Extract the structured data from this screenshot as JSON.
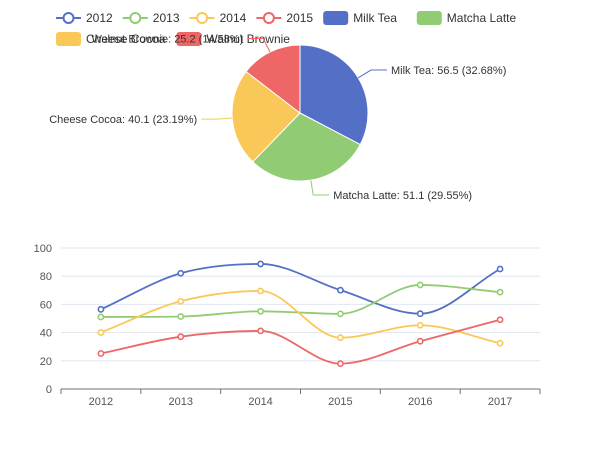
{
  "chart_data": [
    {
      "type": "pie",
      "title": "",
      "slices": [
        {
          "name": "Milk Tea",
          "value": 56.5,
          "percent": "32.68%",
          "color": "#5470c6"
        },
        {
          "name": "Matcha Latte",
          "value": 51.1,
          "percent": "29.55%",
          "color": "#91cc75"
        },
        {
          "name": "Cheese Cocoa",
          "value": 40.1,
          "percent": "23.19%",
          "color": "#fac858"
        },
        {
          "name": "Walnut Brownie",
          "value": 25.2,
          "percent": "14.58%",
          "color": "#ee6666"
        }
      ],
      "legend": {
        "placement": "top"
      }
    },
    {
      "type": "line",
      "title": "",
      "xlabel": "",
      "ylabel": "",
      "categories": [
        "2012",
        "2013",
        "2014",
        "2015",
        "2016",
        "2017"
      ],
      "ylim": [
        0,
        100
      ],
      "yticks": [
        0,
        20,
        40,
        60,
        80,
        100
      ],
      "smooth": true,
      "grid": true,
      "series": [
        {
          "name": "2012",
          "color": "#5470c6",
          "values": [
            56.5,
            82.1,
            88.7,
            70.1,
            53.4,
            85.1
          ]
        },
        {
          "name": "2013",
          "color": "#91cc75",
          "values": [
            51.1,
            51.4,
            55.1,
            53.3,
            73.8,
            68.7
          ]
        },
        {
          "name": "2014",
          "color": "#fac858",
          "values": [
            40.1,
            62.2,
            69.5,
            36.4,
            45.2,
            32.5
          ]
        },
        {
          "name": "2015",
          "color": "#ee6666",
          "values": [
            25.2,
            37.1,
            41.2,
            18.0,
            33.9,
            49.1
          ]
        }
      ],
      "legend": {
        "placement": "top"
      }
    }
  ]
}
